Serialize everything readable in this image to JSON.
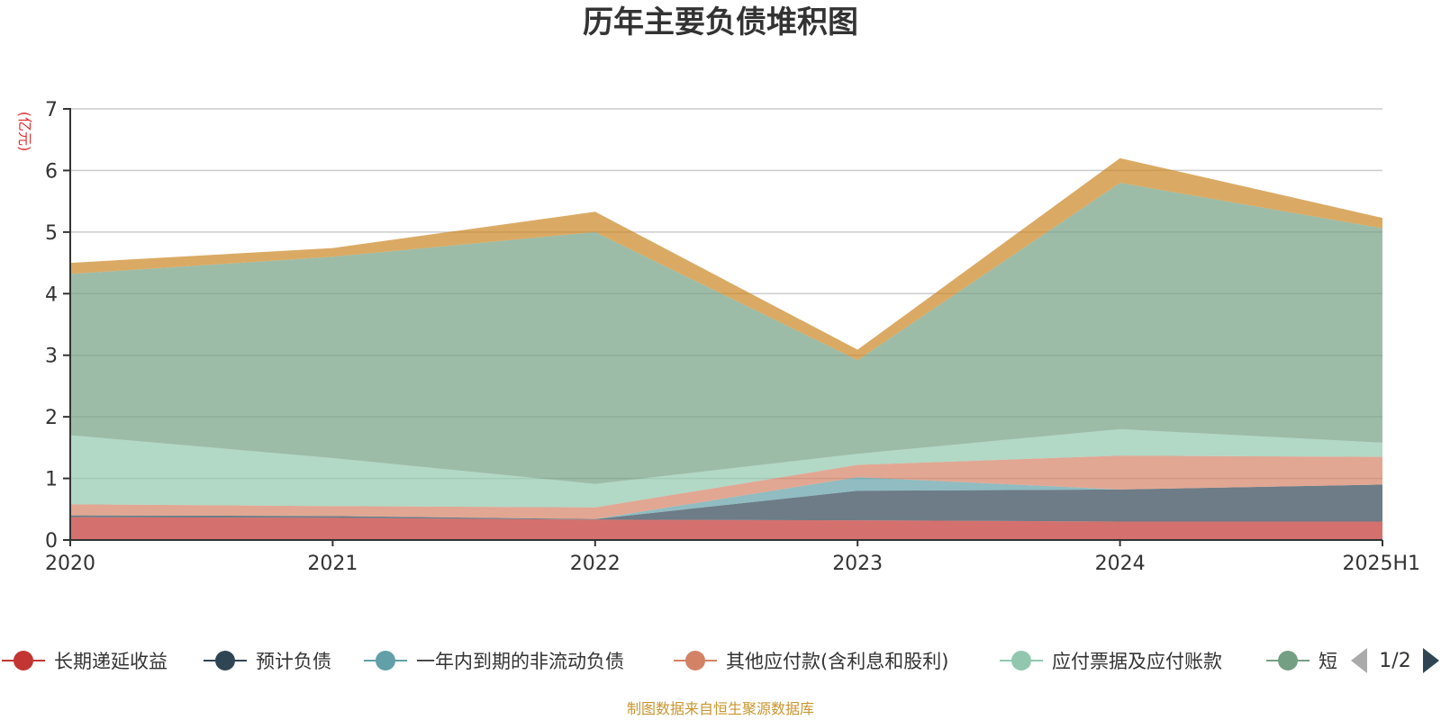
{
  "chart_data": {
    "type": "area",
    "stacked": true,
    "title": "历年主要负债堆积图",
    "unit_label": "(亿元)",
    "categories": [
      "2020",
      "2021",
      "2022",
      "2023",
      "2024",
      "2025H1"
    ],
    "ylim": [
      0,
      7
    ],
    "yticks": [
      0,
      1,
      2,
      3,
      4,
      5,
      6,
      7
    ],
    "grid": true,
    "legend_position": "bottom",
    "series": [
      {
        "name": "长期递延收益",
        "color": "#c23531",
        "values": [
          0.37,
          0.36,
          0.33,
          0.32,
          0.3,
          0.3
        ]
      },
      {
        "name": "预计负债",
        "color": "#2f4554",
        "values": [
          0.03,
          0.03,
          0.01,
          0.48,
          0.52,
          0.6
        ]
      },
      {
        "name": "一年内到期的非流动负债",
        "color": "#61a0a8",
        "values": [
          0.0,
          0.0,
          0.0,
          0.22,
          0.0,
          0.0
        ]
      },
      {
        "name": "其他应付款(含利息和股利)",
        "color": "#d48265",
        "values": [
          0.18,
          0.16,
          0.19,
          0.2,
          0.55,
          0.45
        ]
      },
      {
        "name": "应付票据及应付账款",
        "color": "#91c7ae",
        "values": [
          1.12,
          0.78,
          0.38,
          0.18,
          0.43,
          0.23
        ]
      },
      {
        "name": "短期借款",
        "color": "#749f83",
        "values": [
          2.62,
          3.27,
          4.09,
          1.52,
          4.0,
          3.48
        ]
      },
      {
        "name": "",
        "color": "#ca8622",
        "values": [
          0.18,
          0.14,
          0.33,
          0.17,
          0.4,
          0.17
        ]
      }
    ]
  },
  "legend": {
    "visible_items": [
      {
        "label": "长期递延收益",
        "color": "#c23531"
      },
      {
        "label": "预计负债",
        "color": "#2f4554"
      },
      {
        "label": "一年内到期的非流动负债",
        "color": "#61a0a8"
      },
      {
        "label": "其他应付款(含利息和股利)",
        "color": "#d48265"
      },
      {
        "label": "应付票据及应付账款",
        "color": "#91c7ae"
      },
      {
        "label": "短",
        "color": "#749f83"
      }
    ],
    "page_indicator": "1/2"
  },
  "footer": {
    "source": "制图数据来自恒生聚源数据库"
  }
}
